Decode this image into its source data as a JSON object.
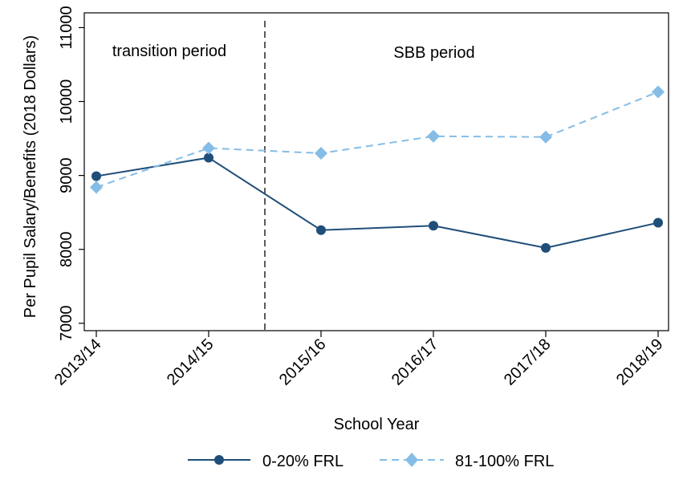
{
  "chart_data": {
    "type": "line",
    "categories": [
      "2013/14",
      "2014/15",
      "2015/16",
      "2016/17",
      "2017/18",
      "2018/19"
    ],
    "series": [
      {
        "name": "0-20% FRL",
        "values": [
          8990,
          9240,
          8260,
          8320,
          8020,
          8360
        ],
        "color": "#1f4e79",
        "marker": "circle",
        "dash": "solid"
      },
      {
        "name": "81-100% FRL",
        "values": [
          8840,
          9370,
          9300,
          9530,
          9520,
          10130
        ],
        "color": "#85bde6",
        "marker": "diamond",
        "dash": "dashed"
      }
    ],
    "xlabel": "School Year",
    "ylabel": "Per Pupil Salary/Benefits (2018 Dollars)",
    "ylim": [
      6900,
      11200
    ],
    "yticks": [
      "7000",
      "8000",
      "9000",
      "10000",
      "11000"
    ],
    "ytick_values": [
      7000,
      8000,
      9000,
      10000,
      11000
    ],
    "divider_after_category": "2014/15",
    "annotations": [
      "transition period",
      "SBB period"
    ],
    "grid": false,
    "legend_position": "bottom"
  }
}
